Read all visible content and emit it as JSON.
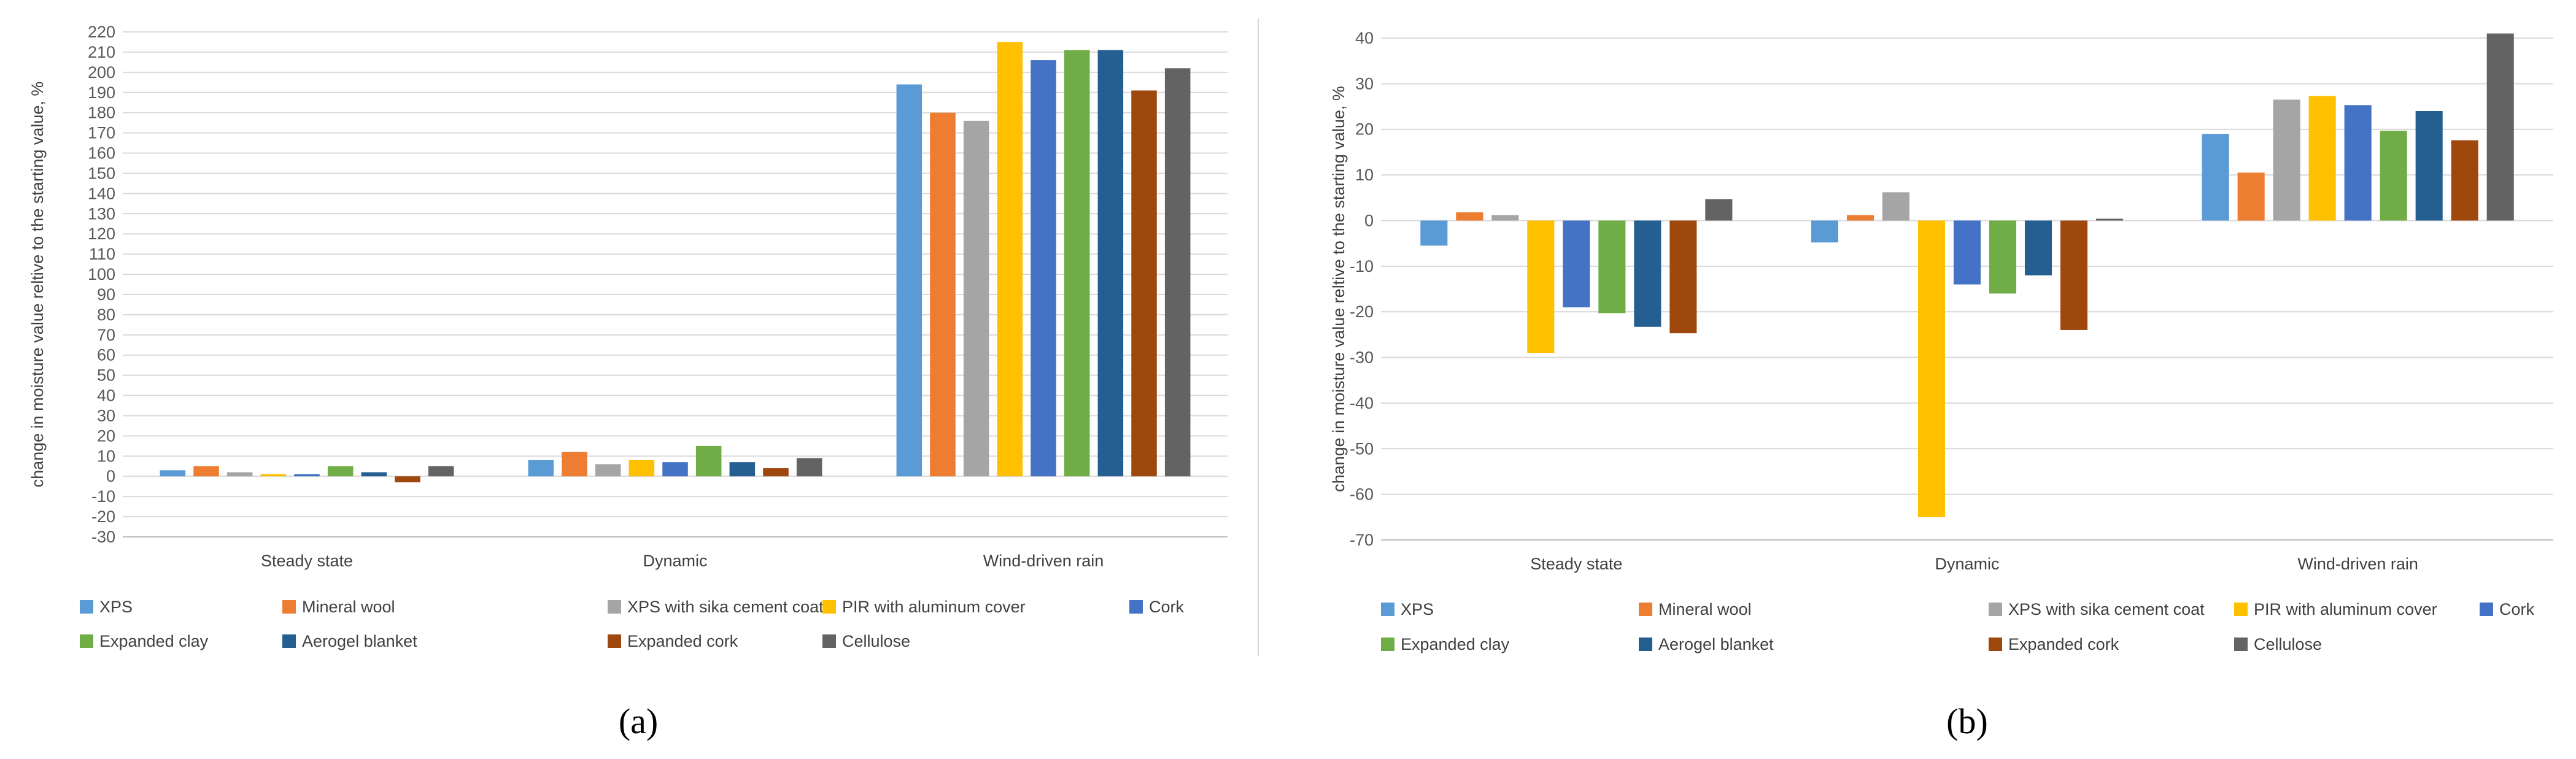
{
  "chart_data": [
    {
      "type": "bar",
      "panel_label": "(a)",
      "categories": [
        "Steady state",
        "Dynamic",
        "Wind-driven rain"
      ],
      "ylabel": "change in moisture value reltive to the starting value, %",
      "ylim": [
        -30,
        220
      ],
      "ytick_step": 10,
      "series": [
        {
          "name": "XPS",
          "color": "#5B9BD5",
          "values": [
            3,
            8,
            194
          ]
        },
        {
          "name": "Mineral wool",
          "color": "#ED7D31",
          "values": [
            5,
            12,
            180
          ]
        },
        {
          "name": "XPS with sika cement coat",
          "color": "#A5A5A5",
          "values": [
            2,
            6,
            176
          ]
        },
        {
          "name": "PIR with aluminum cover",
          "color": "#FFC000",
          "values": [
            1,
            8,
            215
          ]
        },
        {
          "name": "Cork",
          "color": "#4472C4",
          "values": [
            1,
            7,
            206
          ]
        },
        {
          "name": "Expanded clay",
          "color": "#70AD47",
          "values": [
            5,
            15,
            211
          ]
        },
        {
          "name": "Aerogel blanket",
          "color": "#255E91",
          "values": [
            2,
            7,
            211
          ]
        },
        {
          "name": "Expanded cork",
          "color": "#9E480E",
          "values": [
            -3,
            4,
            191
          ]
        },
        {
          "name": "Cellulose",
          "color": "#636363",
          "values": [
            5,
            9,
            202
          ]
        }
      ]
    },
    {
      "type": "bar",
      "panel_label": "(b)",
      "categories": [
        "Steady state",
        "Dynamic",
        "Wind-driven rain"
      ],
      "ylabel": "change in moisture value reltive to the starting value, %",
      "ylim": [
        -70,
        45
      ],
      "ytick_step": 10,
      "series": [
        {
          "name": "XPS",
          "color": "#5B9BD5",
          "values": [
            -5.5,
            -4.8,
            19
          ]
        },
        {
          "name": "Mineral wool",
          "color": "#ED7D31",
          "values": [
            1.8,
            1.2,
            10.5
          ]
        },
        {
          "name": "XPS with sika cement coat",
          "color": "#A5A5A5",
          "values": [
            1.2,
            6.2,
            26.5
          ]
        },
        {
          "name": "PIR with aluminum cover",
          "color": "#FFC000",
          "values": [
            -29,
            -65,
            27.3
          ]
        },
        {
          "name": "Cork",
          "color": "#4472C4",
          "values": [
            -19,
            -14,
            25.3
          ]
        },
        {
          "name": "Expanded clay",
          "color": "#70AD47",
          "values": [
            -20.3,
            -16,
            19.7
          ]
        },
        {
          "name": "Aerogel blanket",
          "color": "#255E91",
          "values": [
            -23.3,
            -12,
            24
          ]
        },
        {
          "name": "Expanded cork",
          "color": "#9E480E",
          "values": [
            -24.7,
            -24,
            17.6
          ]
        },
        {
          "name": "Cellulose",
          "color": "#636363",
          "values": [
            4.7,
            0.4,
            41
          ]
        }
      ]
    }
  ]
}
